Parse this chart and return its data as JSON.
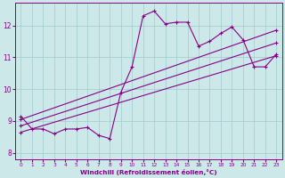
{
  "xlabel": "Windchill (Refroidissement éolien,°C)",
  "bg_color": "#cce8e8",
  "line_color": "#880088",
  "xlim": [
    -0.5,
    23.5
  ],
  "ylim": [
    7.8,
    12.7
  ],
  "xticks": [
    0,
    1,
    2,
    3,
    4,
    5,
    6,
    7,
    8,
    9,
    10,
    11,
    12,
    13,
    14,
    15,
    16,
    17,
    18,
    19,
    20,
    21,
    22,
    23
  ],
  "yticks": [
    8,
    9,
    10,
    11,
    12
  ],
  "series": [
    {
      "x": [
        0,
        1,
        2,
        3,
        4,
        5,
        6,
        7,
        8,
        9,
        10,
        11,
        12,
        13,
        14,
        15,
        16,
        17,
        18,
        19,
        20,
        21,
        22,
        23
      ],
      "y": [
        9.15,
        8.75,
        8.75,
        8.6,
        8.75,
        8.75,
        8.8,
        8.55,
        8.45,
        9.9,
        10.7,
        12.3,
        12.45,
        12.05,
        12.1,
        12.1,
        11.35,
        11.5,
        11.75,
        11.95,
        11.55,
        10.7,
        10.7,
        11.1
      ]
    },
    {
      "x": [
        0,
        23
      ],
      "y": [
        9.05,
        11.85
      ]
    },
    {
      "x": [
        0,
        23
      ],
      "y": [
        8.85,
        11.45
      ]
    },
    {
      "x": [
        0,
        23
      ],
      "y": [
        8.65,
        11.05
      ]
    }
  ]
}
